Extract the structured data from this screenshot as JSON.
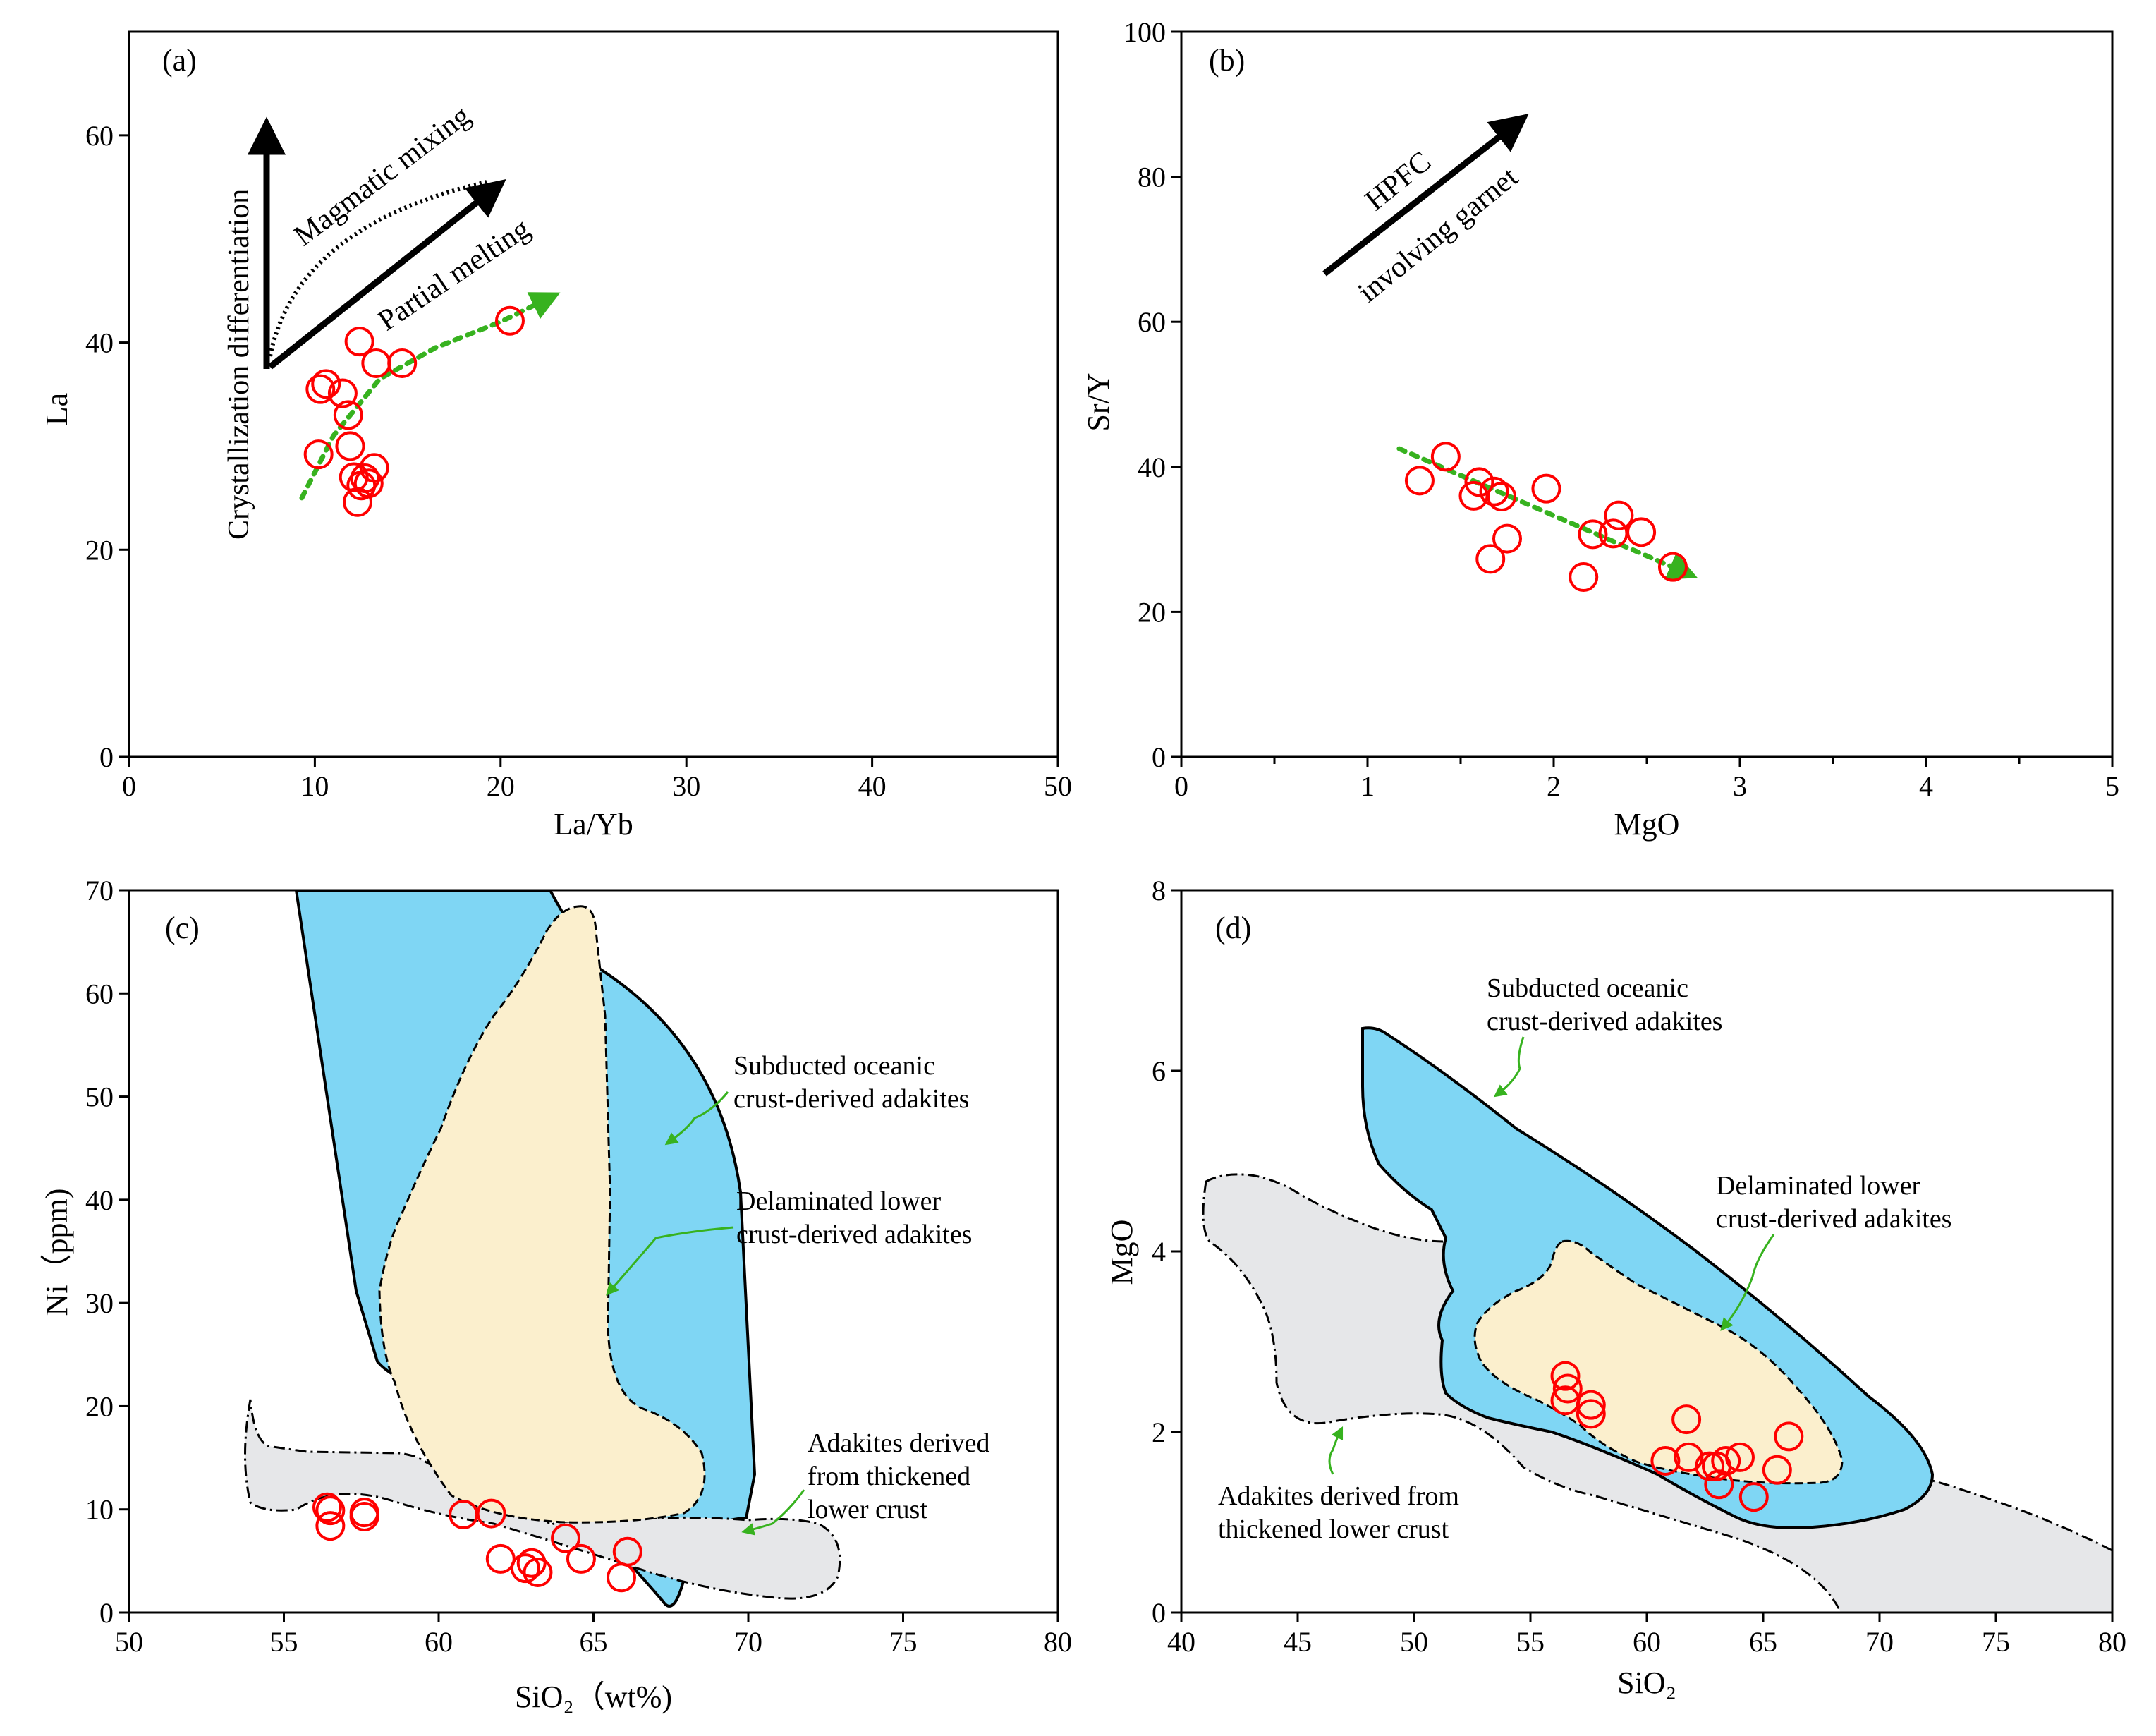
{
  "colors": {
    "samples": "#ff0000",
    "trend": "#37b21f",
    "subducted_field": "#7fd6f4",
    "delaminated_field": "#fbefcd",
    "thickened_field": "#e6e7e9"
  },
  "chart_data": [
    {
      "id": "a",
      "type": "scatter",
      "panel_label": "(a)",
      "xlabel": "La/Yb",
      "ylabel": "La",
      "xlim": [
        0,
        50
      ],
      "ylim": [
        0,
        70
      ],
      "xticks": [
        0,
        10,
        20,
        30,
        40,
        50
      ],
      "yticks": [
        0,
        20,
        40,
        60
      ],
      "xtick_labels": [
        "0",
        "10",
        "20",
        "30",
        "40",
        "50"
      ],
      "ytick_labels": [
        "0",
        "20",
        "40",
        "60"
      ],
      "series": [
        {
          "name": "samples",
          "x": [
            10.2,
            10.3,
            10.6,
            11.5,
            11.8,
            11.9,
            12.1,
            12.3,
            12.4,
            12.5,
            12.7,
            12.9,
            13.2,
            13.3,
            14.7,
            20.5
          ],
          "y": [
            29.2,
            35.5,
            36.0,
            35.1,
            33.0,
            30.0,
            27.0,
            24.6,
            40.1,
            26.2,
            26.9,
            26.4,
            27.9,
            38.0,
            38.0,
            42.1
          ]
        }
      ],
      "trend": {
        "x": [
          9.3,
          11.0,
          13.5,
          16.5,
          20.0,
          22.5
        ],
        "y": [
          25.0,
          31.0,
          36.5,
          39.5,
          42.0,
          44.2
        ]
      },
      "annotations": {
        "crystallization": "Crystallization differentiation",
        "magmatic_mixing": "Magmatic mixing",
        "partial_melting": "Partial melting"
      }
    },
    {
      "id": "b",
      "type": "scatter",
      "panel_label": "(b)",
      "xlabel": "MgO",
      "ylabel": "Sr/Y",
      "xlim": [
        0,
        5
      ],
      "ylim": [
        0,
        100
      ],
      "xticks": [
        0,
        1,
        2,
        3,
        4,
        5
      ],
      "yticks": [
        0,
        20,
        40,
        60,
        80,
        100
      ],
      "xtick_labels": [
        "0",
        "1",
        "2",
        "3",
        "4",
        "5"
      ],
      "ytick_labels": [
        "0",
        "20",
        "40",
        "60",
        "80",
        "100"
      ],
      "series": [
        {
          "name": "samples",
          "x": [
            1.28,
            1.42,
            1.57,
            1.6,
            1.66,
            1.68,
            1.72,
            1.75,
            1.96,
            2.16,
            2.21,
            2.32,
            2.35,
            2.47,
            2.64
          ],
          "y": [
            38.1,
            41.4,
            36.0,
            37.9,
            27.3,
            36.6,
            35.9,
            30.1,
            37.0,
            24.8,
            30.7,
            30.8,
            33.3,
            31.0,
            26.2
          ]
        }
      ],
      "trend": {
        "x": [
          1.17,
          2.7
        ],
        "y": [
          42.5,
          25.5
        ]
      },
      "annotations": {
        "hpfc": "HPFC",
        "garnet": "involving garnet"
      }
    },
    {
      "id": "c",
      "type": "scatter",
      "panel_label": "(c)",
      "xlabel": "SiO₂（wt%)",
      "ylabel": "Ni（ppm)",
      "xlim": [
        50,
        80
      ],
      "ylim": [
        0,
        70
      ],
      "xticks": [
        50,
        55,
        60,
        65,
        70,
        75,
        80
      ],
      "yticks": [
        0,
        10,
        20,
        30,
        40,
        50,
        60,
        70
      ],
      "xtick_labels": [
        "50",
        "55",
        "60",
        "65",
        "70",
        "75",
        "80"
      ],
      "ytick_labels": [
        "0",
        "10",
        "20",
        "30",
        "40",
        "50",
        "60",
        "70"
      ],
      "series": [
        {
          "name": "samples",
          "x": [
            56.4,
            56.5,
            56.5,
            57.6,
            57.6,
            60.8,
            61.7,
            62.0,
            62.8,
            63.0,
            63.2,
            64.1,
            64.6,
            65.9,
            66.1
          ],
          "y": [
            10.2,
            8.4,
            9.9,
            9.7,
            9.3,
            9.5,
            9.6,
            5.2,
            4.3,
            4.8,
            3.9,
            7.2,
            5.2,
            3.4,
            5.9
          ]
        }
      ],
      "fields": [
        {
          "name": "Subducted oceanic crust-derived adakites",
          "label_lines": [
            "Subducted oceanic",
            "crust-derived adakites"
          ]
        },
        {
          "name": "Delaminated lower crust-derived adakites",
          "label_lines": [
            "Delaminated lower",
            "crust-derived adakites"
          ]
        },
        {
          "name": "Adakites derived from thickened lower crust",
          "label_lines": [
            "Adakites derived",
            "from thickened",
            "lower crust"
          ]
        }
      ]
    },
    {
      "id": "d",
      "type": "scatter",
      "panel_label": "(d)",
      "xlabel": "SiO₂",
      "ylabel": "MgO",
      "xlim": [
        40,
        80
      ],
      "ylim": [
        0,
        8
      ],
      "xticks": [
        40,
        45,
        50,
        55,
        60,
        65,
        70,
        75,
        80
      ],
      "yticks": [
        0,
        2,
        4,
        6,
        8
      ],
      "xtick_labels": [
        "40",
        "45",
        "50",
        "55",
        "60",
        "65",
        "70",
        "75",
        "80"
      ],
      "ytick_labels": [
        "0",
        "2",
        "4",
        "6",
        "8"
      ],
      "series": [
        {
          "name": "samples",
          "x": [
            56.5,
            56.6,
            56.5,
            57.6,
            57.6,
            60.8,
            61.7,
            61.8,
            62.7,
            63.0,
            63.1,
            63.4,
            64.0,
            64.6,
            65.6,
            66.1
          ],
          "y": [
            2.62,
            2.48,
            2.35,
            2.3,
            2.2,
            1.68,
            2.14,
            1.72,
            1.62,
            1.62,
            1.42,
            1.68,
            1.72,
            1.28,
            1.58,
            1.95
          ]
        }
      ],
      "fields": [
        {
          "name": "Subducted oceanic crust-derived adakites",
          "label_lines": [
            "Subducted oceanic",
            "crust-derived adakites"
          ]
        },
        {
          "name": "Delaminated lower crust-derived adakites",
          "label_lines": [
            "Delaminated lower",
            "crust-derived adakites"
          ]
        },
        {
          "name": "Adakites derived from thickened lower crust",
          "label_lines": [
            "Adakites derived from",
            "thickened lower crust"
          ]
        }
      ]
    }
  ]
}
